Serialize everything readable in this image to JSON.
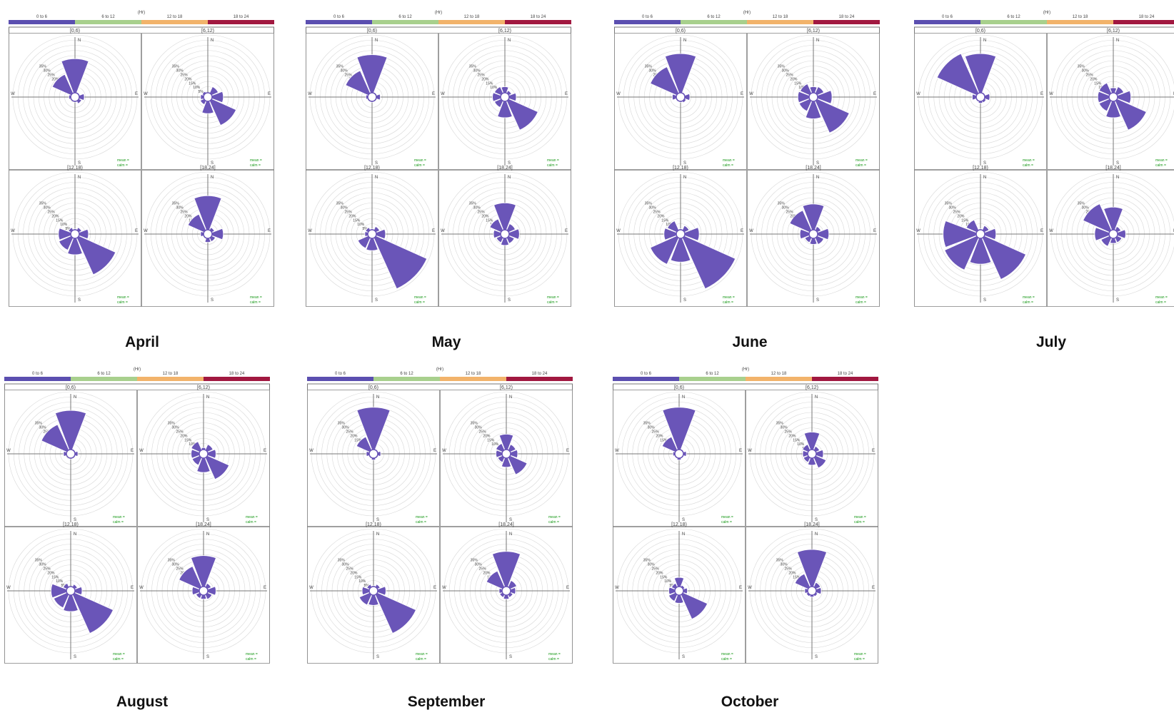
{
  "colors": {
    "petal": "#6a55b8",
    "legend": [
      "#5b4fb0",
      "#a8d08d",
      "#f2b36b",
      "#a11840"
    ],
    "stat_text": "#1a9a1a",
    "grid": "#c8c8c8",
    "ring": "#d8d8d8"
  },
  "legend": {
    "unit": "(Hr)",
    "bins": [
      "0 to 6",
      "6 to 12",
      "12 to 18",
      "18 to 24"
    ]
  },
  "quadrant_titles": [
    "[0,6)",
    "[6,12)",
    "[12,18)",
    "[18,24]"
  ],
  "compass": {
    "n": "N",
    "e": "E",
    "s": "S",
    "w": "W"
  },
  "ring_labels": [
    "5%",
    "10%",
    "15%",
    "20%",
    "25%",
    "30%",
    "35%"
  ],
  "stat_labels": {
    "mean": "mean = ",
    "calm": "calm = "
  },
  "chart_data": [
    {
      "type": "wind-rose",
      "title": "April",
      "sector_order": [
        "N",
        "NE",
        "E",
        "SE",
        "S",
        "SW",
        "W",
        "NW"
      ],
      "panels": [
        {
          "label": "[0,6)",
          "values": [
            37,
            5,
            9,
            7,
            5,
            4,
            6,
            24
          ]
        },
        {
          "label": "[6,12)",
          "values": [
            4,
            11,
            15,
            30,
            16,
            8,
            7,
            6
          ]
        },
        {
          "label": "[12,18)",
          "values": [
            5,
            7,
            13,
            43,
            20,
            17,
            16,
            7
          ]
        },
        {
          "label": "[18,24]",
          "values": [
            37,
            7,
            15,
            8,
            8,
            5,
            7,
            21
          ]
        }
      ]
    },
    {
      "type": "wind-rose",
      "title": "May",
      "sector_order": [
        "N",
        "NE",
        "E",
        "SE",
        "S",
        "SW",
        "W",
        "NW"
      ],
      "panels": [
        {
          "label": "[0,6)",
          "values": [
            41,
            5,
            8,
            5,
            5,
            5,
            6,
            28
          ]
        },
        {
          "label": "[6,12)",
          "values": [
            10,
            7,
            11,
            35,
            20,
            11,
            12,
            11
          ]
        },
        {
          "label": "[12,18)",
          "values": [
            5,
            8,
            13,
            58,
            16,
            15,
            7,
            7
          ]
        },
        {
          "label": "[18,24]",
          "values": [
            30,
            11,
            14,
            10,
            11,
            9,
            11,
            16
          ]
        }
      ]
    },
    {
      "type": "wind-rose",
      "title": "June",
      "sector_order": [
        "N",
        "NE",
        "E",
        "SE",
        "S",
        "SW",
        "W",
        "NW"
      ],
      "panels": [
        {
          "label": "[0,6)",
          "values": [
            42,
            5,
            9,
            6,
            5,
            5,
            8,
            32
          ]
        },
        {
          "label": "[6,12)",
          "values": [
            10,
            11,
            18,
            38,
            21,
            15,
            15,
            14
          ]
        },
        {
          "label": "[12,18)",
          "values": [
            5,
            9,
            18,
            58,
            27,
            32,
            16,
            14
          ]
        },
        {
          "label": "[18,24]",
          "values": [
            29,
            8,
            15,
            11,
            10,
            9,
            13,
            25
          ]
        }
      ]
    },
    {
      "type": "wind-rose",
      "title": "July",
      "sector_order": [
        "N",
        "NE",
        "E",
        "SE",
        "S",
        "SW",
        "W",
        "NW"
      ],
      "panels": [
        {
          "label": "[0,6)",
          "values": [
            42,
            5,
            9,
            6,
            6,
            5,
            8,
            46
          ]
        },
        {
          "label": "[6,12)",
          "values": [
            9,
            11,
            17,
            35,
            20,
            15,
            15,
            15
          ]
        },
        {
          "label": "[12,18)",
          "values": [
            5,
            9,
            15,
            48,
            29,
            38,
            36,
            15
          ]
        },
        {
          "label": "[18,24]",
          "values": [
            26,
            8,
            12,
            9,
            9,
            13,
            18,
            32
          ]
        }
      ]
    },
    {
      "type": "wind-rose",
      "title": "August",
      "sector_order": [
        "N",
        "NE",
        "E",
        "SE",
        "S",
        "SW",
        "W",
        "NW"
      ],
      "panels": [
        {
          "label": "[0,6)",
          "values": [
            42,
            5,
            7,
            5,
            5,
            4,
            7,
            31
          ]
        },
        {
          "label": "[6,12)",
          "values": [
            6,
            10,
            12,
            27,
            18,
            12,
            12,
            13
          ]
        },
        {
          "label": "[12,18)",
          "values": [
            4,
            7,
            11,
            45,
            20,
            18,
            19,
            8
          ]
        },
        {
          "label": "[18,24]",
          "values": [
            34,
            8,
            12,
            9,
            8,
            8,
            11,
            26
          ]
        }
      ]
    },
    {
      "type": "wind-rose",
      "title": "September",
      "sector_order": [
        "N",
        "NE",
        "E",
        "SE",
        "S",
        "SW",
        "W",
        "NW"
      ],
      "panels": [
        {
          "label": "[0,6)",
          "values": [
            45,
            5,
            7,
            5,
            6,
            5,
            7,
            18
          ]
        },
        {
          "label": "[6,12)",
          "values": [
            19,
            10,
            11,
            22,
            13,
            9,
            10,
            11
          ]
        },
        {
          "label": "[12,18)",
          "values": [
            5,
            7,
            12,
            45,
            14,
            15,
            11,
            7
          ]
        },
        {
          "label": "[18,24]",
          "values": [
            38,
            11,
            9,
            7,
            8,
            7,
            7,
            21
          ]
        }
      ]
    },
    {
      "type": "wind-rose",
      "title": "October",
      "sector_order": [
        "N",
        "NE",
        "E",
        "SE",
        "S",
        "SW",
        "W",
        "NW"
      ],
      "panels": [
        {
          "label": "[0,6)",
          "values": [
            45,
            5,
            7,
            5,
            6,
            5,
            6,
            18
          ]
        },
        {
          "label": "[6,12)",
          "values": [
            21,
            8,
            11,
            15,
            11,
            9,
            9,
            10
          ]
        },
        {
          "label": "[12,18)",
          "values": [
            13,
            6,
            8,
            30,
            12,
            11,
            10,
            8
          ]
        },
        {
          "label": "[18,24]",
          "values": [
            40,
            9,
            9,
            6,
            6,
            6,
            7,
            18
          ]
        }
      ]
    }
  ]
}
